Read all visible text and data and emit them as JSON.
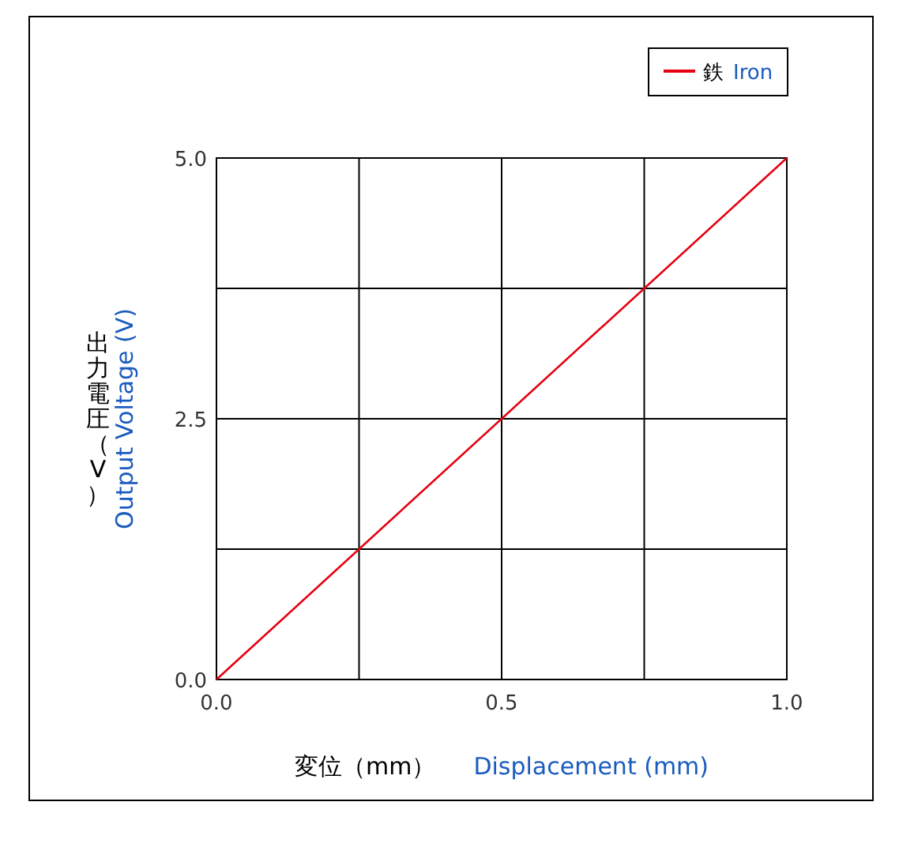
{
  "chart_data": {
    "type": "line",
    "xlabel": "変位（mm）　Displacement (mm)",
    "ylabel": "出力電圧（V）　Output Voltage (V)",
    "x": [
      0,
      1
    ],
    "series": [
      {
        "name": "鉄　Iron",
        "color": "#e60012",
        "values": [
          0,
          5
        ]
      }
    ],
    "xlim": [
      0,
      1
    ],
    "ylim": [
      0,
      5
    ],
    "xticks": [
      {
        "value": 0,
        "label": "0.0"
      },
      {
        "value": 0.25,
        "label": null
      },
      {
        "value": 0.5,
        "label": "0.5"
      },
      {
        "value": 0.75,
        "label": null
      },
      {
        "value": 1,
        "label": "1.0"
      }
    ],
    "yticks": [
      {
        "value": 0,
        "label": "0.0"
      },
      {
        "value": 1.25,
        "label": null
      },
      {
        "value": 2.5,
        "label": "2.5"
      },
      {
        "value": 3.75,
        "label": null
      },
      {
        "value": 5,
        "label": "5.0"
      }
    ],
    "grid": true,
    "legend": "top right",
    "marker": "none",
    "line_style": "solid"
  }
}
